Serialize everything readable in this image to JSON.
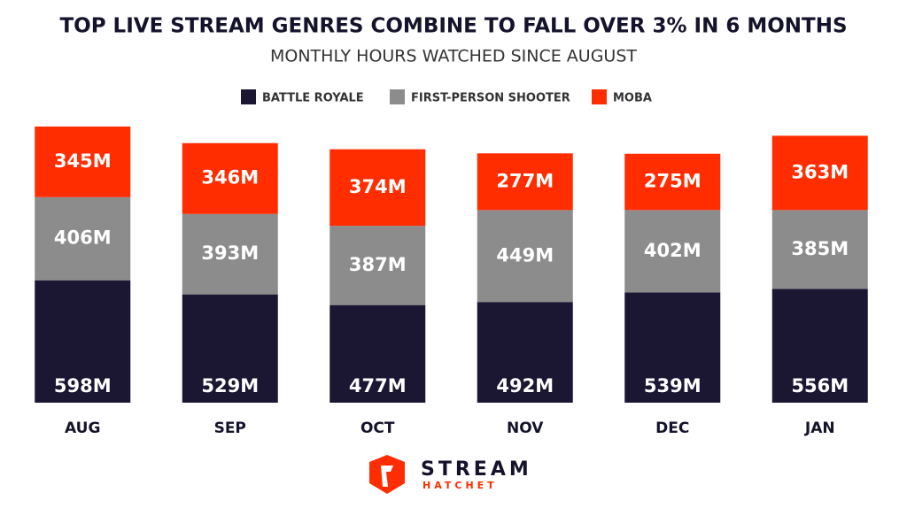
{
  "chart_data": {
    "type": "stacked-bar",
    "title": "TOP LIVE STREAM GENRES COMBINE TO FALL OVER 3% IN 6 MONTHS",
    "subtitle": "MONTHLY HOURS WATCHED SINCE AUGUST",
    "categories": [
      "AUG",
      "SEP",
      "OCT",
      "NOV",
      "DEC",
      "JAN"
    ],
    "series": [
      {
        "name": "BATTLE ROYALE",
        "color": "#1b1733",
        "values": [
          598,
          529,
          477,
          492,
          539,
          556
        ],
        "value_labels": [
          "598M",
          "529M",
          "477M",
          "492M",
          "539M",
          "556M"
        ]
      },
      {
        "name": "FIRST-PERSON SHOOTER",
        "color": "#8c8c8c",
        "values": [
          406,
          393,
          387,
          449,
          402,
          385
        ],
        "value_labels": [
          "406M",
          "393M",
          "387M",
          "449M",
          "402M",
          "385M"
        ]
      },
      {
        "name": "MOBA",
        "color": "#ff2d00",
        "values": [
          345,
          346,
          374,
          277,
          275,
          363
        ],
        "value_labels": [
          "345M",
          "346M",
          "374M",
          "277M",
          "275M",
          "363M"
        ]
      }
    ]
  },
  "brand": {
    "name": "STREAM",
    "subname": "HATCHET"
  }
}
